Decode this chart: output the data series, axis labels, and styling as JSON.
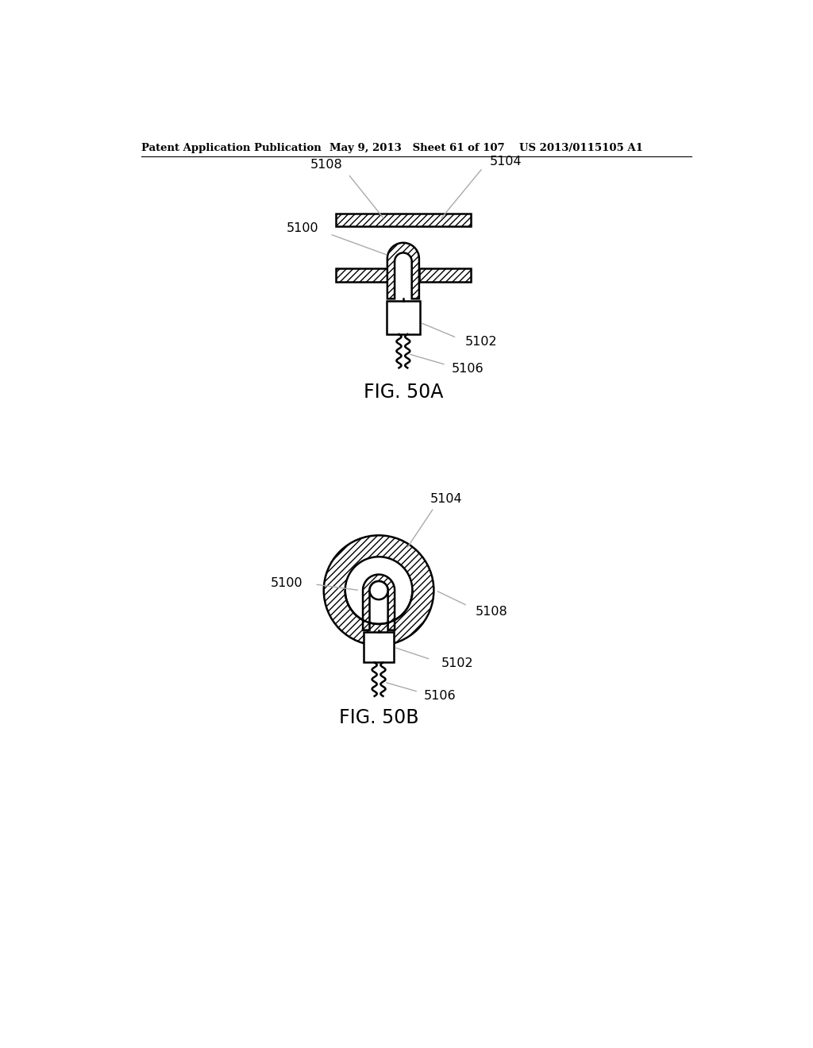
{
  "header_left": "Patent Application Publication",
  "header_mid": "May 9, 2013   Sheet 61 of 107",
  "header_right": "US 2013/0115105 A1",
  "fig_a_label": "FIG. 50A",
  "fig_b_label": "FIG. 50B",
  "bg_color": "#ffffff",
  "line_color": "#000000",
  "lw": 1.8,
  "leader_color": "#aaaaaa"
}
